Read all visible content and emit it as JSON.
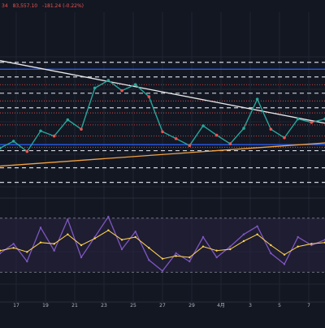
{
  "header": {
    "prefix": "34",
    "close": "83,557.10",
    "change": "-181.24 (-0.22%)"
  },
  "colors": {
    "background": "#131722",
    "up": "#26a69a",
    "down": "#ef5350",
    "trend_down": "#e8e8e8",
    "trend_up": "#f0a040",
    "rsi_line": "#7e57c2",
    "rsi_signal": "#ffd54f",
    "rsi_band": "#2a2340",
    "level_white": "#d1d4dc",
    "level_red": "#ef5350",
    "level_blue": "#2962ff"
  },
  "x_axis": {
    "labels": [
      "17",
      "19",
      "21",
      "23",
      "25",
      "27",
      "29",
      "4月",
      "3",
      "5",
      "7"
    ]
  },
  "chart_data": [
    {
      "type": "line",
      "title": "",
      "note": "price pane, no visible y-axis labels",
      "x": [
        0,
        4,
        8,
        12,
        16,
        20,
        24,
        28,
        32,
        36,
        40,
        44,
        48,
        52,
        56,
        60,
        64,
        68,
        72,
        76,
        80,
        84,
        88,
        92,
        96
      ],
      "series": [
        {
          "values": [
            78200,
            79000,
            77800,
            80200,
            79600,
            81500,
            80400,
            85200,
            86100,
            84900,
            85600,
            84200,
            80100,
            79300,
            78500,
            80800,
            79700,
            78700,
            80500,
            83900,
            80400,
            79400,
            81600,
            81200,
            81600
          ]
        }
      ],
      "trendlines": [
        {
          "points": [
            [
              0,
              88400
            ],
            [
              96,
              81100
            ]
          ]
        },
        {
          "points": [
            [
              0,
              76100
            ],
            [
              96,
              78800
            ]
          ]
        }
      ],
      "horizontal_levels": {
        "white_dashed": [
          88200,
          86500,
          84600,
          82900,
          77900,
          75900,
          74200
        ],
        "red_dotted": [
          85600,
          83700,
          82300,
          80900,
          79600,
          78300
        ],
        "blue_solid": [
          87400,
          78600
        ]
      },
      "ylim": [
        73500,
        89600
      ]
    },
    {
      "type": "line",
      "title": "",
      "note": "RSI pane",
      "x": [
        0,
        4,
        8,
        12,
        16,
        20,
        24,
        28,
        32,
        36,
        40,
        44,
        48,
        52,
        56,
        60,
        64,
        68,
        72,
        76,
        80,
        84,
        88,
        92,
        96
      ],
      "series": [
        {
          "values": [
            44,
            51,
            38,
            63,
            46,
            69,
            41,
            56,
            71,
            47,
            60,
            39,
            31,
            44,
            38,
            56,
            41,
            49,
            58,
            64,
            44,
            36,
            56,
            50,
            54
          ]
        },
        {
          "values": [
            46,
            48,
            45,
            52,
            51,
            58,
            50,
            55,
            61,
            54,
            56,
            48,
            40,
            42,
            41,
            49,
            46,
            47,
            53,
            58,
            50,
            43,
            49,
            51,
            52
          ]
        }
      ],
      "bands": [
        30,
        70
      ],
      "ylim": [
        20,
        80
      ]
    }
  ]
}
